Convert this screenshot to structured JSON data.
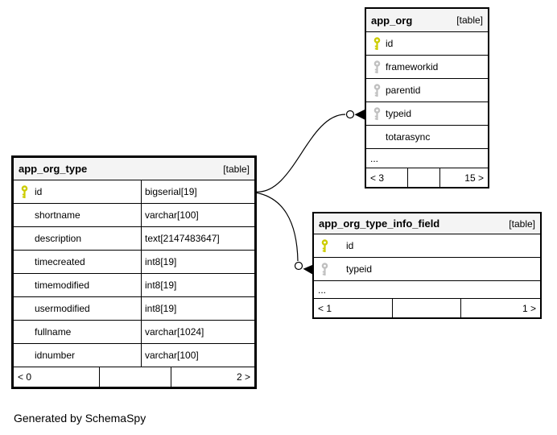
{
  "credit": "Generated by SchemaSpy",
  "colors": {
    "header_bg": "#f4f4f4",
    "border": "#000000",
    "primary_key": "#cccc00",
    "foreign_key": "#c0c0c0",
    "background": "#ffffff"
  },
  "tables": [
    {
      "name": "app_org_type",
      "tag": "[table]",
      "rows": [
        {
          "name": "id",
          "type": "bigserial[19]",
          "key": "pk"
        },
        {
          "name": "shortname",
          "type": "varchar[100]",
          "key": ""
        },
        {
          "name": "description",
          "type": "text[2147483647]",
          "key": ""
        },
        {
          "name": "timecreated",
          "type": "int8[19]",
          "key": ""
        },
        {
          "name": "timemodified",
          "type": "int8[19]",
          "key": ""
        },
        {
          "name": "usermodified",
          "type": "int8[19]",
          "key": ""
        },
        {
          "name": "fullname",
          "type": "varchar[1024]",
          "key": ""
        },
        {
          "name": "idnumber",
          "type": "varchar[100]",
          "key": ""
        }
      ],
      "ellipsis": "",
      "footer": [
        "< 0",
        "",
        "2 >"
      ]
    },
    {
      "name": "app_org",
      "tag": "[table]",
      "rows": [
        {
          "name": "id",
          "key": "pk"
        },
        {
          "name": "frameworkid",
          "key": "fk"
        },
        {
          "name": "parentid",
          "key": "fk"
        },
        {
          "name": "typeid",
          "key": "fk"
        },
        {
          "name": "totarasync",
          "key": ""
        }
      ],
      "ellipsis": "...",
      "footer": [
        "< 3",
        "",
        "15 >"
      ]
    },
    {
      "name": "app_org_type_info_field",
      "tag": "[table]",
      "rows": [
        {
          "name": "id",
          "key": "pk"
        },
        {
          "name": "typeid",
          "key": "fk"
        }
      ],
      "ellipsis": "...",
      "footer": [
        "< 1",
        "",
        "1 >"
      ]
    }
  ],
  "relationships": [
    {
      "from": "app_org_type.id",
      "to": "app_org.typeid"
    },
    {
      "from": "app_org_type.id",
      "to": "app_org_type_info_field.typeid"
    }
  ]
}
